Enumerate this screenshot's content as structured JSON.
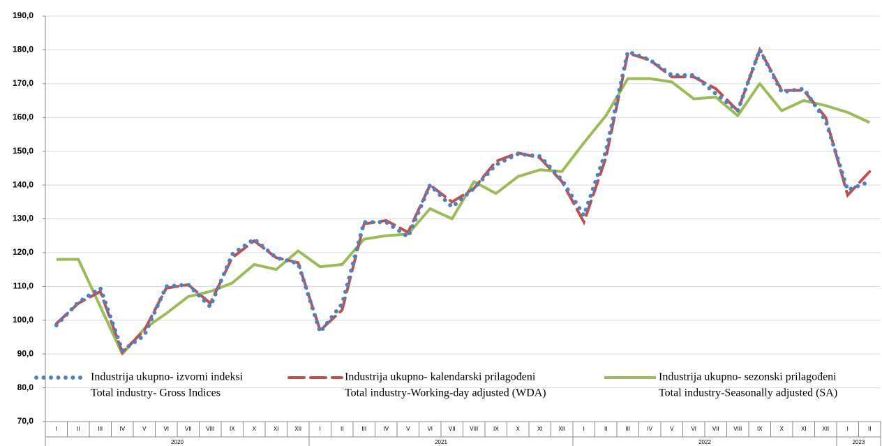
{
  "chart_data": {
    "type": "line",
    "categories": [
      "I",
      "II",
      "III",
      "IV",
      "V",
      "VI",
      "VII",
      "VIII",
      "IX",
      "X",
      "XI",
      "XII",
      "I",
      "II",
      "III",
      "IV",
      "V",
      "VI",
      "VII",
      "VIII",
      "IX",
      "X",
      "XI",
      "XII",
      "I",
      "II",
      "III",
      "IV",
      "V",
      "VI",
      "VII",
      "VIII",
      "IX",
      "X",
      "XI",
      "XII",
      "I",
      "II"
    ],
    "years": [
      {
        "label": "2020",
        "months": 12
      },
      {
        "label": "2021",
        "months": 12
      },
      {
        "label": "2022",
        "months": 12
      },
      {
        "label": "2023",
        "months": 2
      }
    ],
    "series": [
      {
        "name": "Industrija ukupno- izvorni indeksi",
        "name_en": "Total industry- Gross Indices",
        "color": "#4f81bd",
        "style": "dotted",
        "values": [
          98.5,
          105.3,
          109.5,
          91,
          95.5,
          110,
          110.5,
          104,
          119.5,
          124,
          118.5,
          116.8,
          96.5,
          104.8,
          129,
          129,
          124.7,
          140,
          133.5,
          139,
          146,
          149.2,
          148.5,
          141.5,
          131,
          150,
          179.5,
          177,
          172.5,
          172.5,
          167,
          162,
          180,
          167.5,
          168.5,
          159,
          138.5,
          141
        ]
      },
      {
        "name": "Industrija ukupno- kalendarski prilagođeni",
        "name_en": "Total industry-Working-day adjusted (WDA)",
        "color": "#c0504d",
        "style": "dashed",
        "values": [
          99,
          105,
          108.5,
          90.5,
          97,
          109.5,
          110.5,
          105,
          118.5,
          123.5,
          118.5,
          117,
          97,
          103,
          128.5,
          129.5,
          126,
          140,
          135,
          139,
          147,
          149.5,
          148,
          141,
          129,
          148,
          179,
          177,
          172,
          172,
          168.5,
          162,
          180,
          168,
          168,
          160,
          137,
          144
        ]
      },
      {
        "name": "Industrija ukupno- sezonski prilagođeni",
        "name_en": "Total industry-Seasonally adjusted (SA)",
        "color": "#9bbb59",
        "style": "solid",
        "values": [
          118,
          118,
          104,
          90,
          97.5,
          102,
          107,
          108.5,
          111,
          116.5,
          115,
          120.5,
          115.8,
          116.5,
          124,
          125,
          125.5,
          133,
          130,
          141,
          137.5,
          142.5,
          144.5,
          144,
          152.5,
          160.5,
          171.5,
          171.5,
          170.5,
          165.5,
          166,
          160.5,
          170,
          162,
          165,
          163.5,
          161.5,
          158.5
        ]
      }
    ],
    "ylim": [
      70,
      190
    ],
    "yticks": [
      {
        "value": 70,
        "label": "70,0"
      },
      {
        "value": 80,
        "label": "80,0"
      },
      {
        "value": 90,
        "label": "90,0"
      },
      {
        "value": 100,
        "label": "100,0"
      },
      {
        "value": 110,
        "label": "110,0"
      },
      {
        "value": 120,
        "label": "120,0"
      },
      {
        "value": 130,
        "label": "130,0"
      },
      {
        "value": 140,
        "label": "140,0"
      },
      {
        "value": 150,
        "label": "150,0"
      },
      {
        "value": 160,
        "label": "160,0"
      },
      {
        "value": 170,
        "label": "170,0"
      },
      {
        "value": 180,
        "label": "180,0"
      },
      {
        "value": 190,
        "label": "190,0"
      }
    ],
    "grid": true
  }
}
